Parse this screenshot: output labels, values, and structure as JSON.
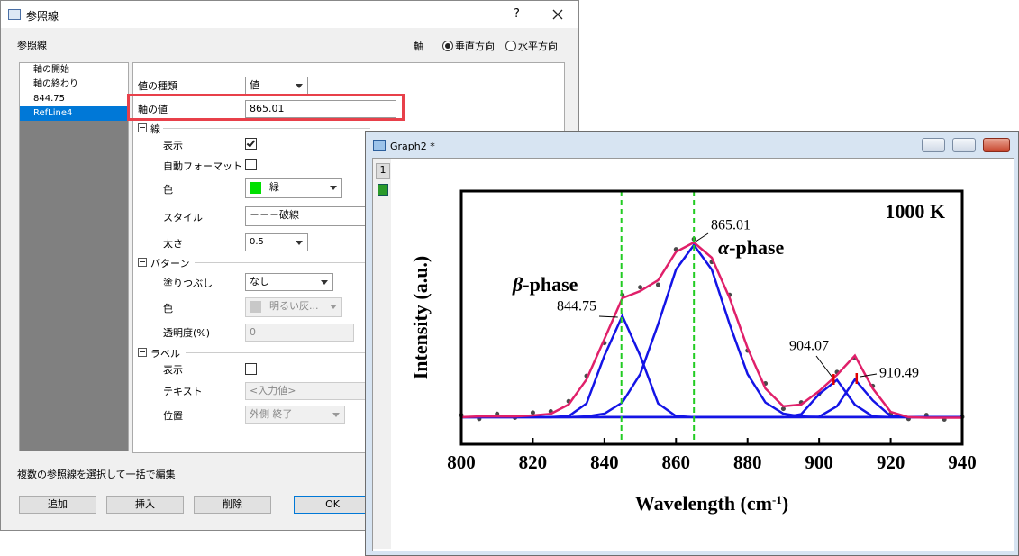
{
  "dialog": {
    "title": "参照線",
    "help": "?",
    "header_label": "参照線",
    "axis_label": "軸",
    "axis_options": [
      {
        "label": "垂直方向",
        "selected": true
      },
      {
        "label": "水平方向",
        "selected": false
      }
    ],
    "list": {
      "items": [
        "軸の開始",
        "軸の終わり",
        "844.75",
        "RefLine4"
      ],
      "selected": 3
    },
    "form": {
      "value_type": {
        "label": "値の種類",
        "value": "値"
      },
      "axis_value": {
        "label": "軸の値",
        "value": "865.01"
      },
      "line_section": "線",
      "show": {
        "label": "表示",
        "checked": true
      },
      "auto_format": {
        "label": "自動フォーマット",
        "checked": false
      },
      "color": {
        "label": "色",
        "value": "緑",
        "swatch": "#00e000"
      },
      "style": {
        "label": "スタイル",
        "value": "－－－破線"
      },
      "width": {
        "label": "太さ",
        "value": "0.5"
      },
      "pattern_section": "パターン",
      "fill": {
        "label": "塗りつぶし",
        "value": "なし"
      },
      "pattern_color": {
        "label": "色",
        "value": "明るい灰...",
        "swatch": "#c8c8c8"
      },
      "transparency": {
        "label": "透明度(%)",
        "value": "0"
      },
      "label_section": "ラベル",
      "label_show": {
        "label": "表示",
        "checked": false
      },
      "label_text": {
        "label": "テキスト",
        "value": "<入力値>"
      },
      "position": {
        "label": "位置",
        "value": "外側 終了"
      }
    },
    "note": "複数の参照線を選択して一括で編集",
    "buttons": [
      "追加",
      "挿入",
      "削除",
      "OK"
    ]
  },
  "graph_window": {
    "title": "Graph2 *",
    "layer": "1",
    "chart_data": {
      "type": "line",
      "xlabel": [
        "Wavelength (cm",
        "-1",
        ")"
      ],
      "ylabel": "Intensity (a.u.)",
      "xlim": [
        800,
        940
      ],
      "xticks": [
        800,
        820,
        840,
        860,
        880,
        900,
        920,
        940
      ],
      "ylim": [
        0,
        100
      ],
      "x": [
        800,
        805,
        810,
        815,
        820,
        825,
        830,
        835,
        840,
        845,
        850,
        855,
        860,
        865,
        870,
        875,
        880,
        885,
        890,
        895,
        900,
        905,
        910,
        915,
        920,
        925,
        930,
        935,
        940
      ],
      "series": [
        {
          "kind": "scatter",
          "color": "#4a4a4a",
          "values": [
            11.5,
            10,
            12,
            10.5,
            12.5,
            13,
            17,
            27,
            40,
            59,
            62,
            63,
            77,
            81,
            72,
            59,
            37,
            24,
            14,
            16.5,
            20,
            28.5,
            34,
            23,
            12,
            10,
            11.5,
            9.8,
            10.8
          ]
        },
        {
          "kind": "line",
          "color": "#555555",
          "values": [
            10.7,
            10.7,
            10.7,
            10.7,
            10.7,
            10.7,
            10.7,
            10.7,
            10.7,
            10.7,
            10.7,
            10.7,
            10.7,
            10.7,
            10.7,
            10.7,
            10.7,
            10.7,
            10.7,
            10.7,
            10.7,
            10.7,
            10.7,
            10.7,
            10.7,
            10.7,
            10.7,
            10.7,
            10.7
          ]
        },
        {
          "kind": "line",
          "color": "#1414e6",
          "values": [
            10.7,
            10.7,
            10.7,
            10.7,
            10.7,
            10.7,
            11.1,
            16.1,
            35,
            50.7,
            35,
            16.1,
            11.1,
            10.7,
            10.7,
            10.7,
            10.7,
            10.7,
            10.7,
            10.7,
            10.7,
            10.7,
            10.7,
            10.7,
            10.7,
            10.7,
            10.7,
            10.7,
            10.7
          ]
        },
        {
          "kind": "line",
          "color": "#1414e6",
          "values": [
            10.7,
            10.7,
            10.7,
            10.7,
            10.7,
            10.7,
            10.7,
            11,
            12.1,
            16.5,
            27.7,
            47.4,
            69,
            78.7,
            69,
            47.4,
            27.7,
            16.5,
            12.1,
            11,
            10.7,
            10.7,
            10.7,
            10.7,
            10.7,
            10.7,
            10.7,
            10.7,
            10.7
          ]
        },
        {
          "kind": "line",
          "color": "#1414e6",
          "values": [
            10.7,
            10.7,
            10.7,
            10.7,
            10.7,
            10.7,
            10.7,
            10.7,
            10.7,
            10.7,
            10.7,
            10.7,
            10.7,
            10.7,
            10.7,
            10.7,
            10.7,
            10.7,
            10.7,
            11.9,
            19.8,
            25.4,
            15.6,
            11,
            10.7,
            10.7,
            10.7,
            10.7,
            10.7
          ]
        },
        {
          "kind": "line",
          "color": "#1414e6",
          "values": [
            10.7,
            10.7,
            10.7,
            10.7,
            10.7,
            10.7,
            10.7,
            10.7,
            10.7,
            10.7,
            10.7,
            10.7,
            10.7,
            10.7,
            10.7,
            10.7,
            10.7,
            10.7,
            10.7,
            10.7,
            10.9,
            15,
            25.6,
            17.3,
            11.1,
            10.7,
            10.7,
            10.7,
            10.7
          ]
        },
        {
          "kind": "line",
          "color": "#e0206a",
          "values": [
            10.7,
            11,
            11,
            11,
            11.4,
            12,
            15.7,
            25.6,
            41.6,
            57.7,
            60.5,
            64.8,
            76,
            79.7,
            73.7,
            57.7,
            38,
            22,
            15,
            15.7,
            21,
            27.4,
            35,
            22,
            12.8,
            10.7,
            10.5,
            10.5,
            10.5
          ]
        }
      ],
      "ref_lines": [
        844.75,
        865.01
      ],
      "ref_color": "#22cc22",
      "peak_labels": [
        844.75,
        865.01,
        904.07,
        910.49
      ],
      "peak_markers": [
        904.07,
        910.49
      ],
      "marker_color": "#e00000",
      "temperature": "1000 K",
      "phases": [
        {
          "symbol": "β",
          "text": "-phase"
        },
        {
          "symbol": "α",
          "text": "-phase"
        }
      ]
    }
  }
}
